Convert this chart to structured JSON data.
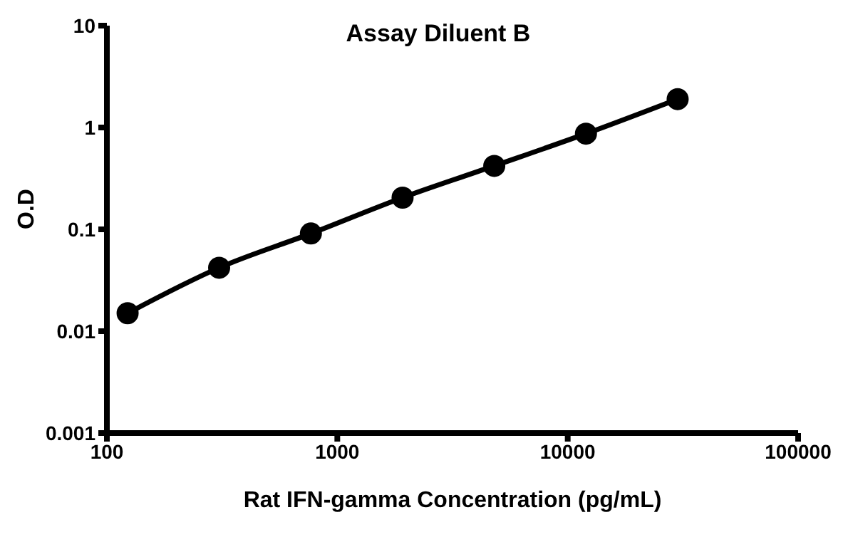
{
  "chart_data": {
    "type": "line",
    "title": "Assay Diluent B",
    "xlabel": "Rat IFN-gamma Concentration (pg/mL)",
    "ylabel": "O.D",
    "x": [
      123,
      307,
      768,
      1920,
      4800,
      12000,
      30000
    ],
    "series": [
      {
        "color": "#000000",
        "values": [
          0.015,
          0.042,
          0.091,
          0.205,
          0.42,
          0.87,
          1.9
        ]
      }
    ],
    "log": "xy",
    "xlim": [
      100,
      100000
    ],
    "xticks": [
      100,
      1000,
      10000,
      100000
    ],
    "ylim": [
      0.001,
      10
    ],
    "yticks": [
      0.001,
      0.01,
      0.1,
      1,
      10
    ],
    "grid": false,
    "marker": "circle",
    "line_style": "solid"
  }
}
